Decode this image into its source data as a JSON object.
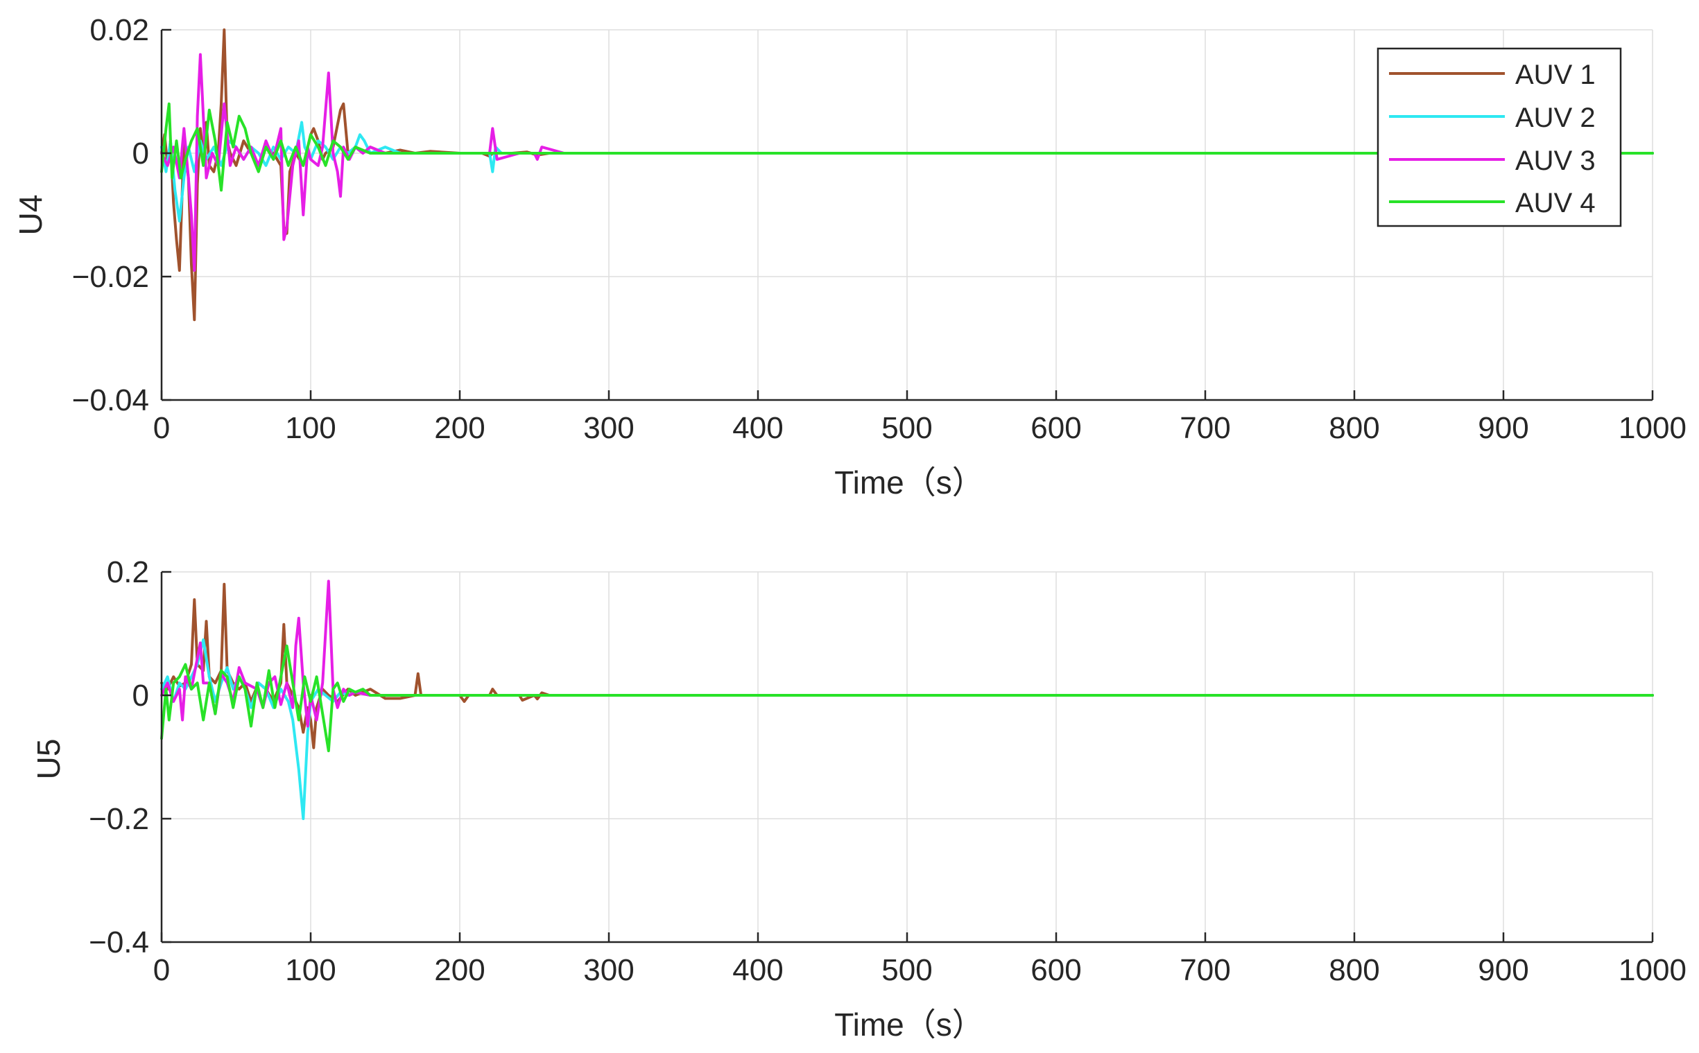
{
  "figure": {
    "background": "#ffffff",
    "axis_color": "#262626",
    "grid_color": "#dedede"
  },
  "chart_data": [
    {
      "type": "line",
      "xlabel": "Time（s）",
      "ylabel": "U4",
      "xlim": [
        0,
        1000
      ],
      "ylim": [
        -0.04,
        0.02
      ],
      "xticks": [
        0,
        100,
        200,
        300,
        400,
        500,
        600,
        700,
        800,
        900,
        1000
      ],
      "xtick_labels": [
        "0",
        "100",
        "200",
        "300",
        "400",
        "500",
        "600",
        "700",
        "800",
        "900",
        "1000"
      ],
      "yticks": [
        -0.04,
        -0.02,
        0,
        0.02
      ],
      "ytick_labels": [
        "−0.04",
        "−0.02",
        "0",
        "0.02"
      ],
      "grid": true,
      "legend": "top-right",
      "series": [
        {
          "name": "AUV 1",
          "color": "#a0522d",
          "x": [
            0,
            2,
            4,
            6,
            8,
            10,
            12,
            15,
            18,
            20,
            22,
            24,
            26,
            28,
            30,
            32,
            35,
            38,
            40,
            42,
            44,
            46,
            50,
            55,
            60,
            65,
            70,
            75,
            80,
            82,
            84,
            86,
            90,
            95,
            100,
            102,
            105,
            108,
            110,
            115,
            120,
            122,
            125,
            130,
            135,
            140,
            150,
            160,
            170,
            180,
            200,
            215,
            220,
            222,
            225,
            235,
            245,
            252,
            260,
            270,
            300,
            400,
            500,
            600,
            700,
            800,
            900,
            1000
          ],
          "y": [
            0,
            0.003,
            -0.002,
            0.002,
            -0.008,
            -0.014,
            -0.019,
            0.002,
            -0.004,
            -0.018,
            -0.027,
            -0.005,
            0.004,
            0,
            0.005,
            -0.002,
            -0.003,
            0,
            0.008,
            0.021,
            0.002,
            0,
            -0.002,
            0.002,
            0,
            -0.002,
            0.001,
            0,
            -0.002,
            -0.012,
            -0.013,
            -0.003,
            0,
            -0.002,
            0.003,
            0.004,
            0.002,
            -0.001,
            0,
            0.001,
            0.007,
            0.008,
            0,
            0.001,
            0,
            0.001,
            0,
            0.0005,
            0,
            0.0003,
            0,
            0,
            -0.0005,
            0,
            0,
            0,
            0.0002,
            -0.0003,
            0,
            0,
            0,
            0,
            0,
            0,
            0,
            0,
            0,
            0
          ]
        },
        {
          "name": "AUV 2",
          "color": "#2ee8f2",
          "x": [
            0,
            3,
            6,
            9,
            12,
            15,
            18,
            22,
            26,
            30,
            35,
            40,
            45,
            50,
            55,
            60,
            65,
            70,
            75,
            80,
            85,
            90,
            94,
            96,
            100,
            105,
            110,
            115,
            120,
            125,
            130,
            133,
            136,
            140,
            150,
            160,
            170,
            200,
            215,
            220,
            222,
            224,
            228,
            240,
            250,
            260,
            270,
            300,
            400,
            500,
            600,
            700,
            800,
            900,
            1000
          ],
          "y": [
            0.001,
            -0.003,
            0.002,
            -0.006,
            -0.011,
            -0.004,
            0.001,
            -0.003,
            0.002,
            -0.001,
            0.001,
            -0.002,
            0.002,
            0.001,
            -0.001,
            0.001,
            0,
            -0.002,
            0.001,
            -0.001,
            0.001,
            0,
            0.005,
            0.001,
            -0.001,
            0.002,
            0.001,
            -0.001,
            0.001,
            0,
            0.001,
            0.003,
            0.002,
            0,
            0.001,
            0,
            0,
            0,
            0,
            0,
            -0.003,
            0.001,
            0,
            0,
            0,
            0,
            0,
            0,
            0,
            0,
            0,
            0,
            0,
            0,
            0
          ]
        },
        {
          "name": "AUV 3",
          "color": "#e61ee6",
          "x": [
            0,
            4,
            8,
            12,
            15,
            18,
            20,
            22,
            24,
            26,
            28,
            30,
            34,
            38,
            42,
            46,
            50,
            55,
            60,
            65,
            70,
            75,
            80,
            82,
            84,
            88,
            92,
            95,
            98,
            100,
            105,
            108,
            112,
            115,
            118,
            120,
            122,
            126,
            130,
            135,
            140,
            150,
            160,
            200,
            215,
            220,
            222,
            225,
            240,
            250,
            252,
            255,
            270,
            300,
            400,
            500,
            600,
            700,
            800,
            900,
            1000
          ],
          "y": [
            0,
            -0.002,
            0.001,
            -0.004,
            0.004,
            -0.004,
            -0.01,
            -0.019,
            0.006,
            0.016,
            0.006,
            -0.004,
            0,
            -0.002,
            0.008,
            -0.002,
            0.001,
            -0.001,
            0.001,
            -0.002,
            0.002,
            -0.001,
            0.004,
            -0.014,
            -0.012,
            -0.002,
            0.002,
            -0.01,
            0.001,
            -0.001,
            -0.002,
            0.001,
            0.013,
            0,
            -0.003,
            -0.007,
            0.001,
            -0.001,
            0.001,
            0,
            0.001,
            0,
            0,
            0,
            0,
            0,
            0.004,
            -0.001,
            0,
            0,
            -0.001,
            0.001,
            0,
            0,
            0,
            0,
            0,
            0,
            0,
            0,
            0
          ]
        },
        {
          "name": "AUV 4",
          "color": "#28e228",
          "x": [
            0,
            3,
            5,
            7,
            10,
            13,
            16,
            20,
            24,
            28,
            32,
            36,
            40,
            44,
            48,
            52,
            56,
            60,
            65,
            70,
            75,
            80,
            85,
            90,
            95,
            100,
            105,
            110,
            115,
            120,
            125,
            130,
            140,
            150,
            160,
            170,
            200,
            220,
            240,
            260,
            270,
            300,
            400,
            500,
            600,
            700,
            800,
            900,
            1000
          ],
          "y": [
            -0.003,
            0.004,
            0.008,
            -0.004,
            0.002,
            -0.004,
            -0.001,
            0.002,
            0.004,
            -0.002,
            0.007,
            0.002,
            -0.006,
            0.005,
            0.001,
            0.006,
            0.004,
            0,
            -0.003,
            0.001,
            -0.001,
            0.002,
            -0.002,
            0.001,
            -0.002,
            0.003,
            0.001,
            -0.002,
            0.002,
            0.001,
            -0.001,
            0.001,
            0,
            0,
            0,
            0,
            0,
            0,
            0,
            0,
            0,
            0,
            0,
            0,
            0,
            0,
            0,
            0,
            0
          ]
        }
      ]
    },
    {
      "type": "line",
      "xlabel": "Time（s）",
      "ylabel": "U5",
      "xlim": [
        0,
        1000
      ],
      "ylim": [
        -0.4,
        0.2
      ],
      "xticks": [
        0,
        100,
        200,
        300,
        400,
        500,
        600,
        700,
        800,
        900,
        1000
      ],
      "xtick_labels": [
        "0",
        "100",
        "200",
        "300",
        "400",
        "500",
        "600",
        "700",
        "800",
        "900",
        "1000"
      ],
      "yticks": [
        -0.4,
        -0.2,
        0,
        0.2
      ],
      "ytick_labels": [
        "−0.4",
        "−0.2",
        "0",
        "0.2"
      ],
      "grid": true,
      "legend": "none",
      "series": [
        {
          "name": "AUV 1",
          "color": "#a0522d",
          "x": [
            0,
            4,
            8,
            12,
            16,
            20,
            22,
            24,
            28,
            30,
            32,
            36,
            40,
            42,
            44,
            48,
            52,
            56,
            60,
            65,
            70,
            75,
            80,
            82,
            84,
            88,
            92,
            95,
            98,
            100,
            102,
            104,
            108,
            112,
            118,
            125,
            130,
            140,
            150,
            160,
            170,
            172,
            174,
            180,
            200,
            203,
            206,
            220,
            222,
            225,
            240,
            242,
            250,
            252,
            255,
            260,
            270,
            300,
            400,
            500,
            600,
            700,
            800,
            900,
            1000
          ],
          "y": [
            0.02,
            0.01,
            0.03,
            0.015,
            0.02,
            0.05,
            0.155,
            0.05,
            0.04,
            0.12,
            0.03,
            0.02,
            0.04,
            0.18,
            0.04,
            0.02,
            0.01,
            0.02,
            -0.01,
            0.02,
            0.01,
            -0.01,
            0.02,
            0.115,
            0.02,
            0,
            -0.02,
            -0.06,
            -0.02,
            -0.04,
            -0.085,
            -0.02,
            0.01,
            0,
            -0.01,
            0.01,
            0,
            0.01,
            -0.005,
            -0.005,
            0,
            0.035,
            0,
            0,
            0,
            -0.01,
            0,
            0,
            0.01,
            0,
            0,
            -0.008,
            0,
            -0.006,
            0.004,
            0,
            0,
            0,
            0,
            0,
            0,
            0,
            0,
            0,
            0
          ]
        },
        {
          "name": "AUV 2",
          "color": "#2ee8f2",
          "x": [
            0,
            4,
            8,
            12,
            16,
            20,
            24,
            28,
            32,
            36,
            40,
            44,
            48,
            52,
            56,
            60,
            65,
            70,
            75,
            80,
            85,
            88,
            92,
            95,
            98,
            100,
            105,
            110,
            115,
            120,
            125,
            130,
            140,
            150,
            160,
            200,
            220,
            240,
            260,
            270,
            300,
            400,
            500,
            600,
            700,
            800,
            900,
            1000
          ],
          "y": [
            0.01,
            0.03,
            -0.01,
            0.02,
            0.01,
            0.03,
            0.05,
            0.09,
            0.03,
            -0.01,
            0.02,
            0.045,
            0.01,
            0.03,
            0.01,
            -0.02,
            0.02,
            0.01,
            -0.02,
            0.01,
            -0.01,
            -0.04,
            -0.12,
            -0.2,
            -0.06,
            -0.01,
            0.01,
            0,
            -0.01,
            0.005,
            0,
            0.005,
            0,
            0,
            0,
            0,
            0,
            0,
            0,
            0,
            0,
            0,
            0,
            0,
            0,
            0,
            0,
            0
          ]
        },
        {
          "name": "AUV 3",
          "color": "#e61ee6",
          "x": [
            0,
            4,
            8,
            12,
            14,
            16,
            20,
            24,
            26,
            28,
            32,
            36,
            40,
            44,
            48,
            52,
            56,
            60,
            64,
            68,
            72,
            76,
            80,
            84,
            88,
            90,
            92,
            95,
            98,
            100,
            104,
            108,
            112,
            115,
            118,
            122,
            126,
            130,
            140,
            150,
            160,
            200,
            220,
            240,
            260,
            270,
            300,
            400,
            500,
            600,
            700,
            800,
            900,
            1000
          ],
          "y": [
            0,
            0.02,
            -0.01,
            0.01,
            -0.04,
            0.03,
            0.01,
            0.06,
            0.085,
            0.02,
            0.02,
            -0.03,
            0.035,
            0.02,
            -0.01,
            0.045,
            0.02,
            0.015,
            0.01,
            -0.02,
            0.02,
            0.03,
            -0.015,
            0.02,
            -0.02,
            0.08,
            0.125,
            0.02,
            -0.05,
            0,
            -0.04,
            0.02,
            0.185,
            0.01,
            -0.02,
            0.01,
            0,
            0.005,
            0,
            0,
            0,
            0,
            0,
            0,
            0,
            0,
            0,
            0,
            0,
            0,
            0,
            0,
            0,
            0
          ]
        },
        {
          "name": "AUV 4",
          "color": "#28e228",
          "x": [
            0,
            3,
            5,
            8,
            12,
            16,
            20,
            24,
            28,
            32,
            36,
            40,
            44,
            48,
            52,
            56,
            60,
            64,
            68,
            72,
            76,
            80,
            84,
            88,
            92,
            96,
            100,
            104,
            108,
            112,
            115,
            118,
            122,
            126,
            130,
            135,
            140,
            150,
            160,
            200,
            220,
            240,
            260,
            270,
            300,
            400,
            500,
            600,
            700,
            800,
            900,
            1000
          ],
          "y": [
            -0.07,
            0.01,
            -0.04,
            0.02,
            0.03,
            0.05,
            0.01,
            0.02,
            -0.04,
            0.02,
            -0.03,
            0.04,
            0.03,
            -0.02,
            0.03,
            0.01,
            -0.05,
            0.02,
            -0.02,
            0.04,
            -0.02,
            0.03,
            0.08,
            0.02,
            -0.04,
            0.03,
            -0.01,
            0.03,
            -0.03,
            -0.09,
            0.01,
            0.02,
            -0.01,
            0.01,
            0.005,
            0.01,
            0,
            0,
            0,
            0,
            0,
            0,
            0,
            0,
            0,
            0,
            0,
            0,
            0,
            0,
            0,
            0
          ]
        }
      ]
    }
  ]
}
